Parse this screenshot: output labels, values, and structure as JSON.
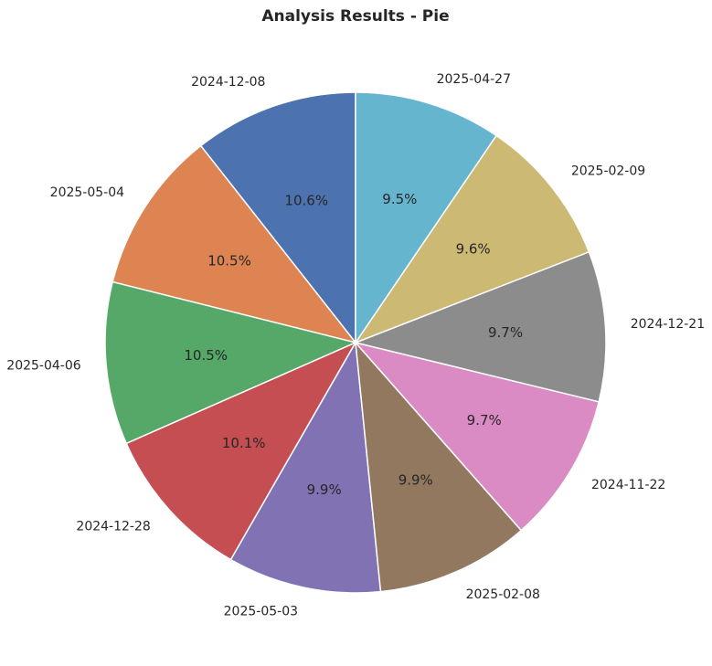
{
  "chart_data": {
    "type": "pie",
    "title": "Analysis Results - Pie",
    "categories": [
      "2024-12-08",
      "2025-05-04",
      "2025-04-06",
      "2024-12-28",
      "2025-05-03",
      "2025-02-08",
      "2024-11-22",
      "2024-12-21",
      "2025-02-09",
      "2025-04-27"
    ],
    "values": [
      10.6,
      10.5,
      10.5,
      10.1,
      9.9,
      9.9,
      9.7,
      9.7,
      9.6,
      9.5
    ],
    "percent_labels": [
      "10.6%",
      "10.5%",
      "10.5%",
      "10.1%",
      "9.9%",
      "9.9%",
      "9.7%",
      "9.7%",
      "9.6%",
      "9.5%"
    ],
    "colors": [
      "#4c72b0",
      "#dd8452",
      "#55a868",
      "#c44e52",
      "#8172b3",
      "#937860",
      "#da8bc3",
      "#8c8c8c",
      "#ccb974",
      "#64b5cd"
    ],
    "start_angle": 90,
    "direction": "counterclockwise",
    "legend": "none"
  }
}
